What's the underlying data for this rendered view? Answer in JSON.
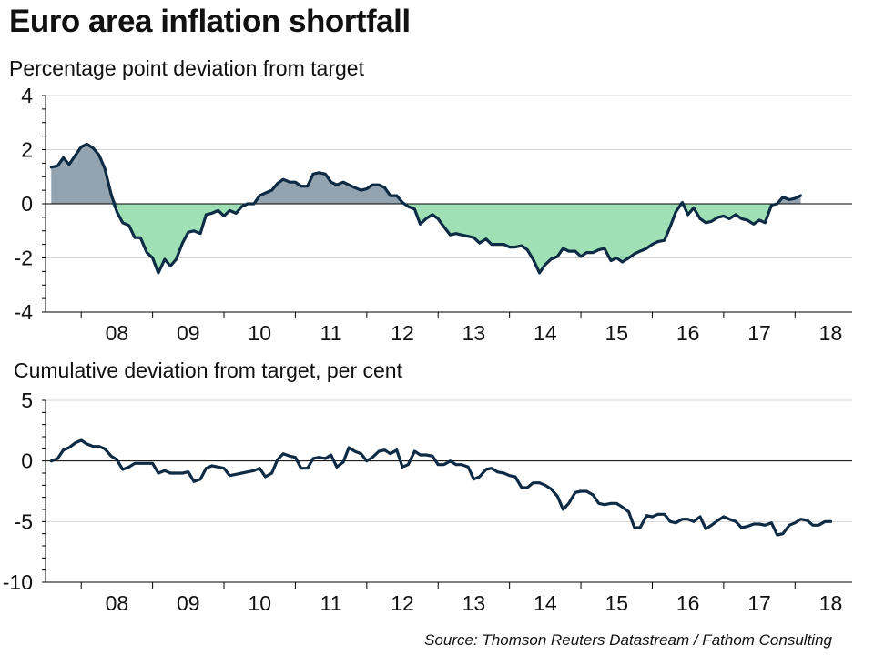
{
  "title": "Euro area inflation shortfall",
  "source": "Source: Thomson Reuters Datastream / Fathom Consulting",
  "colors": {
    "line": "#0d2b45",
    "above_target_fill": "#94a3b0",
    "below_target_fill": "#9fe0b4",
    "grid": "#d4d4d4",
    "axis": "#000000"
  },
  "chart_data": [
    {
      "type": "area",
      "title": "Percentage point deviation from target",
      "x_unit": "year (decimal)",
      "x_tick_labels": [
        "08",
        "09",
        "10",
        "11",
        "12",
        "13",
        "14",
        "15",
        "16",
        "17",
        "18"
      ],
      "yticks": [
        4,
        2,
        0,
        -2,
        -4
      ],
      "ylim": [
        -4,
        4
      ],
      "xlim": [
        2007.5,
        2018.8
      ],
      "grid": true,
      "fill": "above zero grey, below zero green",
      "series": [
        {
          "values": [
            [
              2007.58,
              1.35
            ],
            [
              2007.67,
              1.4
            ],
            [
              2007.75,
              1.7
            ],
            [
              2007.83,
              1.45
            ],
            [
              2007.92,
              1.8
            ],
            [
              2008.0,
              2.1
            ],
            [
              2008.08,
              2.2
            ],
            [
              2008.17,
              2.05
            ],
            [
              2008.25,
              1.8
            ],
            [
              2008.33,
              1.3
            ],
            [
              2008.42,
              0.35
            ],
            [
              2008.5,
              -0.3
            ],
            [
              2008.58,
              -0.7
            ],
            [
              2008.67,
              -0.8
            ],
            [
              2008.75,
              -1.25
            ],
            [
              2008.83,
              -1.25
            ],
            [
              2008.92,
              -1.8
            ],
            [
              2009.0,
              -2.0
            ],
            [
              2009.08,
              -2.55
            ],
            [
              2009.17,
              -2.05
            ],
            [
              2009.25,
              -2.3
            ],
            [
              2009.33,
              -2.05
            ],
            [
              2009.42,
              -1.45
            ],
            [
              2009.5,
              -1.05
            ],
            [
              2009.58,
              -1.0
            ],
            [
              2009.67,
              -1.1
            ],
            [
              2009.75,
              -0.4
            ],
            [
              2009.83,
              -0.35
            ],
            [
              2009.92,
              -0.25
            ],
            [
              2010.0,
              -0.45
            ],
            [
              2010.08,
              -0.25
            ],
            [
              2010.17,
              -0.35
            ],
            [
              2010.25,
              -0.1
            ],
            [
              2010.33,
              0.0
            ],
            [
              2010.42,
              0.0
            ],
            [
              2010.5,
              0.3
            ],
            [
              2010.58,
              0.4
            ],
            [
              2010.67,
              0.5
            ],
            [
              2010.75,
              0.75
            ],
            [
              2010.83,
              0.9
            ],
            [
              2010.92,
              0.8
            ],
            [
              2011.0,
              0.8
            ],
            [
              2011.08,
              0.65
            ],
            [
              2011.17,
              0.65
            ],
            [
              2011.25,
              1.1
            ],
            [
              2011.33,
              1.15
            ],
            [
              2011.42,
              1.1
            ],
            [
              2011.5,
              0.8
            ],
            [
              2011.58,
              0.7
            ],
            [
              2011.67,
              0.8
            ],
            [
              2011.75,
              0.7
            ],
            [
              2011.83,
              0.6
            ],
            [
              2011.92,
              0.5
            ],
            [
              2012.0,
              0.55
            ],
            [
              2012.08,
              0.7
            ],
            [
              2012.17,
              0.7
            ],
            [
              2012.25,
              0.6
            ],
            [
              2012.33,
              0.3
            ],
            [
              2012.42,
              0.3
            ],
            [
              2012.5,
              0.05
            ],
            [
              2012.58,
              -0.1
            ],
            [
              2012.67,
              -0.2
            ],
            [
              2012.75,
              -0.75
            ],
            [
              2012.83,
              -0.55
            ],
            [
              2012.92,
              -0.4
            ],
            [
              2013.0,
              -0.55
            ],
            [
              2013.08,
              -0.85
            ],
            [
              2013.17,
              -1.15
            ],
            [
              2013.25,
              -1.1
            ],
            [
              2013.33,
              -1.15
            ],
            [
              2013.42,
              -1.2
            ],
            [
              2013.5,
              -1.25
            ],
            [
              2013.58,
              -1.45
            ],
            [
              2013.67,
              -1.3
            ],
            [
              2013.75,
              -1.5
            ],
            [
              2013.83,
              -1.5
            ],
            [
              2013.92,
              -1.5
            ],
            [
              2014.0,
              -1.6
            ],
            [
              2014.08,
              -1.6
            ],
            [
              2014.17,
              -1.55
            ],
            [
              2014.25,
              -1.7
            ],
            [
              2014.33,
              -2.05
            ],
            [
              2014.42,
              -2.55
            ],
            [
              2014.5,
              -2.25
            ],
            [
              2014.58,
              -2.05
            ],
            [
              2014.67,
              -1.95
            ],
            [
              2014.75,
              -1.65
            ],
            [
              2014.83,
              -1.75
            ],
            [
              2014.92,
              -1.75
            ],
            [
              2015.0,
              -1.95
            ],
            [
              2015.08,
              -1.8
            ],
            [
              2015.17,
              -1.8
            ],
            [
              2015.25,
              -1.7
            ],
            [
              2015.33,
              -1.65
            ],
            [
              2015.42,
              -2.1
            ],
            [
              2015.5,
              -2.0
            ],
            [
              2015.58,
              -2.15
            ],
            [
              2015.67,
              -2.0
            ],
            [
              2015.75,
              -1.85
            ],
            [
              2015.83,
              -1.75
            ],
            [
              2015.92,
              -1.65
            ],
            [
              2016.0,
              -1.5
            ],
            [
              2016.08,
              -1.4
            ],
            [
              2016.17,
              -1.35
            ],
            [
              2016.25,
              -0.85
            ],
            [
              2016.33,
              -0.3
            ],
            [
              2016.42,
              0.05
            ],
            [
              2016.5,
              -0.4
            ],
            [
              2016.58,
              -0.15
            ],
            [
              2016.67,
              -0.55
            ],
            [
              2016.75,
              -0.7
            ],
            [
              2016.83,
              -0.65
            ],
            [
              2016.92,
              -0.5
            ],
            [
              2017.0,
              -0.45
            ],
            [
              2017.08,
              -0.55
            ],
            [
              2017.17,
              -0.4
            ],
            [
              2017.25,
              -0.55
            ],
            [
              2017.33,
              -0.6
            ],
            [
              2017.42,
              -0.75
            ],
            [
              2017.5,
              -0.6
            ],
            [
              2017.58,
              -0.7
            ],
            [
              2017.67,
              -0.05
            ],
            [
              2017.75,
              0.0
            ],
            [
              2017.83,
              0.25
            ],
            [
              2017.92,
              0.15
            ],
            [
              2018.0,
              0.2
            ],
            [
              2018.08,
              0.3
            ]
          ]
        }
      ]
    },
    {
      "type": "line",
      "title": "Cumulative deviation from target, per cent",
      "x_unit": "year (decimal)",
      "x_tick_labels": [
        "08",
        "09",
        "10",
        "11",
        "12",
        "13",
        "14",
        "15",
        "16",
        "17",
        "18"
      ],
      "yticks": [
        5,
        0,
        -5,
        -10
      ],
      "ylim": [
        -10,
        5
      ],
      "xlim": [
        2007.5,
        2018.8
      ],
      "grid": true,
      "series": [
        {
          "values": [
            [
              2007.58,
              0.0
            ],
            [
              2007.67,
              0.2
            ],
            [
              2007.75,
              0.9
            ],
            [
              2007.83,
              1.1
            ],
            [
              2007.92,
              1.5
            ],
            [
              2008.0,
              1.7
            ],
            [
              2008.08,
              1.4
            ],
            [
              2008.17,
              1.2
            ],
            [
              2008.25,
              1.2
            ],
            [
              2008.33,
              1.0
            ],
            [
              2008.42,
              0.4
            ],
            [
              2008.5,
              0.1
            ],
            [
              2008.58,
              -0.7
            ],
            [
              2008.67,
              -0.5
            ],
            [
              2008.75,
              -0.2
            ],
            [
              2008.83,
              -0.2
            ],
            [
              2008.92,
              -0.2
            ],
            [
              2009.0,
              -0.2
            ],
            [
              2009.08,
              -1.0
            ],
            [
              2009.17,
              -0.8
            ],
            [
              2009.25,
              -1.0
            ],
            [
              2009.33,
              -1.0
            ],
            [
              2009.42,
              -1.0
            ],
            [
              2009.5,
              -0.9
            ],
            [
              2009.58,
              -1.7
            ],
            [
              2009.67,
              -1.5
            ],
            [
              2009.75,
              -0.6
            ],
            [
              2009.83,
              -0.4
            ],
            [
              2009.92,
              -0.5
            ],
            [
              2010.0,
              -0.6
            ],
            [
              2010.08,
              -1.2
            ],
            [
              2010.17,
              -1.1
            ],
            [
              2010.25,
              -1.0
            ],
            [
              2010.33,
              -0.9
            ],
            [
              2010.42,
              -0.8
            ],
            [
              2010.5,
              -0.6
            ],
            [
              2010.58,
              -1.3
            ],
            [
              2010.67,
              -1.0
            ],
            [
              2010.75,
              0.1
            ],
            [
              2010.83,
              0.6
            ],
            [
              2010.92,
              0.4
            ],
            [
              2011.0,
              0.3
            ],
            [
              2011.08,
              -0.6
            ],
            [
              2011.17,
              -0.6
            ],
            [
              2011.25,
              0.2
            ],
            [
              2011.33,
              0.3
            ],
            [
              2011.42,
              0.2
            ],
            [
              2011.5,
              0.5
            ],
            [
              2011.58,
              -0.5
            ],
            [
              2011.67,
              -0.1
            ],
            [
              2011.75,
              1.1
            ],
            [
              2011.83,
              0.8
            ],
            [
              2011.92,
              0.6
            ],
            [
              2012.0,
              0.0
            ],
            [
              2012.08,
              0.3
            ],
            [
              2012.17,
              0.8
            ],
            [
              2012.25,
              0.9
            ],
            [
              2012.33,
              0.6
            ],
            [
              2012.42,
              0.9
            ],
            [
              2012.5,
              -0.5
            ],
            [
              2012.58,
              -0.3
            ],
            [
              2012.67,
              0.8
            ],
            [
              2012.75,
              0.5
            ],
            [
              2012.83,
              0.5
            ],
            [
              2012.92,
              0.4
            ],
            [
              2013.0,
              -0.3
            ],
            [
              2013.08,
              -0.3
            ],
            [
              2013.17,
              0.0
            ],
            [
              2013.25,
              -0.3
            ],
            [
              2013.33,
              -0.3
            ],
            [
              2013.42,
              -0.5
            ],
            [
              2013.5,
              -1.5
            ],
            [
              2013.58,
              -1.3
            ],
            [
              2013.67,
              -0.7
            ],
            [
              2013.75,
              -0.6
            ],
            [
              2013.83,
              -0.9
            ],
            [
              2013.92,
              -1.0
            ],
            [
              2014.0,
              -1.2
            ],
            [
              2014.08,
              -1.3
            ],
            [
              2014.17,
              -2.2
            ],
            [
              2014.25,
              -2.2
            ],
            [
              2014.33,
              -1.8
            ],
            [
              2014.42,
              -1.8
            ],
            [
              2014.5,
              -2.0
            ],
            [
              2014.58,
              -2.3
            ],
            [
              2014.67,
              -2.9
            ],
            [
              2014.75,
              -4.0
            ],
            [
              2014.83,
              -3.5
            ],
            [
              2014.92,
              -2.6
            ],
            [
              2015.0,
              -2.5
            ],
            [
              2015.08,
              -2.5
            ],
            [
              2015.17,
              -2.8
            ],
            [
              2015.25,
              -3.5
            ],
            [
              2015.33,
              -3.6
            ],
            [
              2015.42,
              -3.5
            ],
            [
              2015.5,
              -3.5
            ],
            [
              2015.58,
              -3.8
            ],
            [
              2015.67,
              -4.2
            ],
            [
              2015.75,
              -5.5
            ],
            [
              2015.83,
              -5.5
            ],
            [
              2015.92,
              -4.5
            ],
            [
              2016.0,
              -4.6
            ],
            [
              2016.08,
              -4.4
            ],
            [
              2016.17,
              -4.4
            ],
            [
              2016.25,
              -5.0
            ],
            [
              2016.33,
              -5.1
            ],
            [
              2016.42,
              -4.8
            ],
            [
              2016.5,
              -4.8
            ],
            [
              2016.58,
              -5.0
            ],
            [
              2016.67,
              -4.6
            ],
            [
              2016.75,
              -5.6
            ],
            [
              2016.83,
              -5.3
            ],
            [
              2016.92,
              -4.9
            ],
            [
              2017.0,
              -4.6
            ],
            [
              2017.08,
              -4.8
            ],
            [
              2017.17,
              -5.0
            ],
            [
              2017.25,
              -5.5
            ],
            [
              2017.33,
              -5.4
            ],
            [
              2017.42,
              -5.2
            ],
            [
              2017.5,
              -5.2
            ],
            [
              2017.58,
              -5.3
            ],
            [
              2017.67,
              -5.1
            ],
            [
              2017.75,
              -6.1
            ],
            [
              2017.83,
              -6.0
            ],
            [
              2017.92,
              -5.3
            ],
            [
              2018.0,
              -5.1
            ],
            [
              2018.08,
              -4.8
            ],
            [
              2018.17,
              -4.9
            ],
            [
              2018.25,
              -5.3
            ],
            [
              2018.33,
              -5.3
            ],
            [
              2018.42,
              -5.0
            ],
            [
              2018.5,
              -5.0
            ]
          ]
        }
      ]
    }
  ]
}
